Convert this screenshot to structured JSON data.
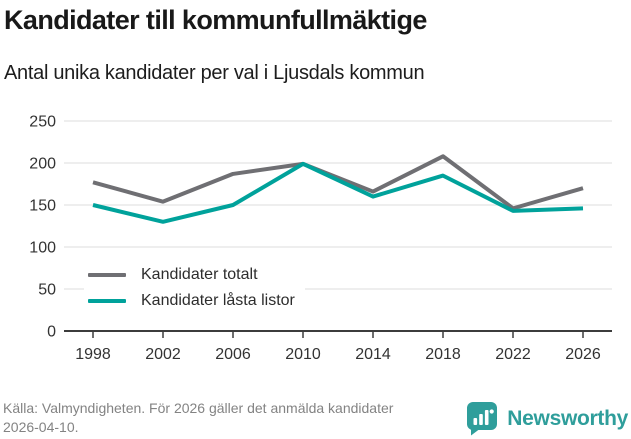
{
  "header": {
    "title": "Kandidater till kommunfullmäktige",
    "subtitle": "Antal unika kandidater per val i Ljusdals kommun"
  },
  "chart_data": {
    "type": "line",
    "title": "Kandidater till kommunfullmäktige",
    "subtitle": "Antal unika kandidater per val i Ljusdals kommun",
    "x": [
      1998,
      2002,
      2006,
      2010,
      2014,
      2018,
      2022,
      2026
    ],
    "series": [
      {
        "name": "Kandidater totalt",
        "color": "#6f6f73",
        "values": [
          177,
          154,
          187,
          199,
          166,
          208,
          146,
          170
        ]
      },
      {
        "name": "Kandidater låsta listor",
        "color": "#00a29b",
        "values": [
          150,
          130,
          150,
          199,
          160,
          185,
          143,
          146
        ]
      }
    ],
    "xlabel": "",
    "ylabel": "",
    "ylim": [
      0,
      250
    ],
    "yticks": [
      0,
      50,
      100,
      150,
      200,
      250
    ],
    "grid": true,
    "legend_position": "inside bottom-left"
  },
  "footer": {
    "source": "Källa: Valmyndigheten. För 2026 gäller det anmälda kandidater 2026-04-10.",
    "brand": "Newsworthy",
    "brand_color": "#2f9e9b"
  },
  "colors": {
    "axis": "#3c3c3c",
    "gridline": "#e4e4e4",
    "tick_label": "#333333"
  }
}
